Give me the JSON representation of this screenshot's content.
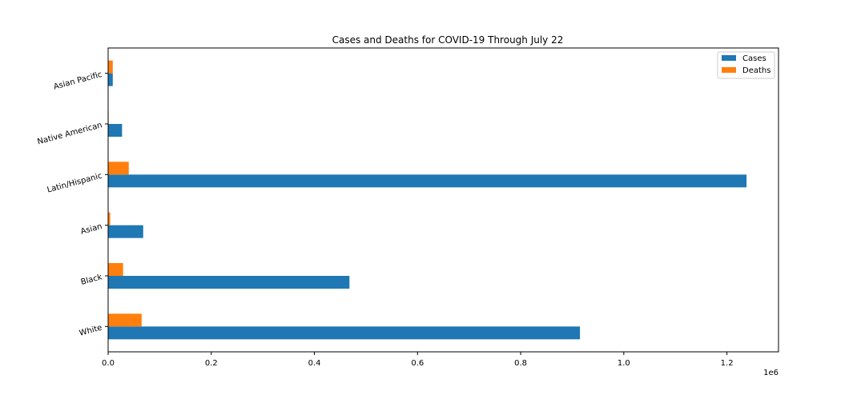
{
  "chart_data": {
    "type": "bar",
    "orientation": "horizontal",
    "title": "Cases and Deaths for COVID-19 Through July 22",
    "categories": [
      "White",
      "Black",
      "Asian",
      "Latin/Hispanic",
      "Native American",
      "Asian Pacific"
    ],
    "series": [
      {
        "name": "Cases",
        "color": "#1f77b4",
        "values": [
          915000,
          468000,
          68000,
          1238000,
          27000,
          9000
        ]
      },
      {
        "name": "Deaths",
        "color": "#ff7f0e",
        "values": [
          65000,
          29000,
          4000,
          40000,
          1000,
          9000
        ]
      }
    ],
    "xlim": [
      0,
      1300000
    ],
    "xticks": [
      0,
      200000,
      400000,
      600000,
      800000,
      1000000,
      1200000
    ],
    "xtick_labels": [
      "0.0",
      "0.2",
      "0.4",
      "0.6",
      "0.8",
      "1.0",
      "1.2"
    ],
    "x_offset_label": "1e6",
    "xlabel": "",
    "ylabel": "",
    "legend_position": "top-right"
  }
}
